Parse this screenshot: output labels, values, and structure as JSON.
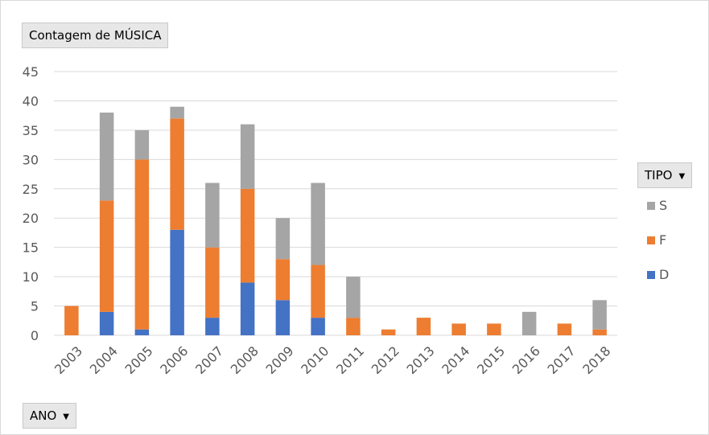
{
  "values_field": {
    "label": "Contagem de MÚSICA"
  },
  "axis_field": {
    "label": "ANO",
    "arrow": "▼"
  },
  "legend_field": {
    "label": "TIPO",
    "arrow": "▼"
  },
  "chart_data": {
    "type": "bar",
    "stacked": true,
    "categories": [
      "2003",
      "2004",
      "2005",
      "2006",
      "2007",
      "2008",
      "2009",
      "2010",
      "2011",
      "2012",
      "2013",
      "2014",
      "2015",
      "2016",
      "2017",
      "2018"
    ],
    "series": [
      {
        "name": "D",
        "color": "#4472C4",
        "values": [
          0,
          4,
          1,
          18,
          3,
          9,
          6,
          3,
          0,
          0,
          0,
          0,
          0,
          0,
          0,
          0
        ]
      },
      {
        "name": "F",
        "color": "#ED7D31",
        "values": [
          5,
          19,
          29,
          19,
          12,
          16,
          7,
          9,
          3,
          1,
          3,
          2,
          2,
          0,
          2,
          1
        ]
      },
      {
        "name": "S",
        "color": "#A5A5A5",
        "values": [
          0,
          15,
          5,
          2,
          11,
          11,
          7,
          14,
          7,
          0,
          0,
          0,
          0,
          4,
          0,
          5
        ]
      }
    ],
    "yticks": [
      0,
      5,
      10,
      15,
      20,
      25,
      30,
      35,
      40,
      45
    ],
    "ylim": [
      0,
      45
    ],
    "grid": true,
    "legend_position": "right",
    "legend_order": [
      "S",
      "F",
      "D"
    ]
  }
}
